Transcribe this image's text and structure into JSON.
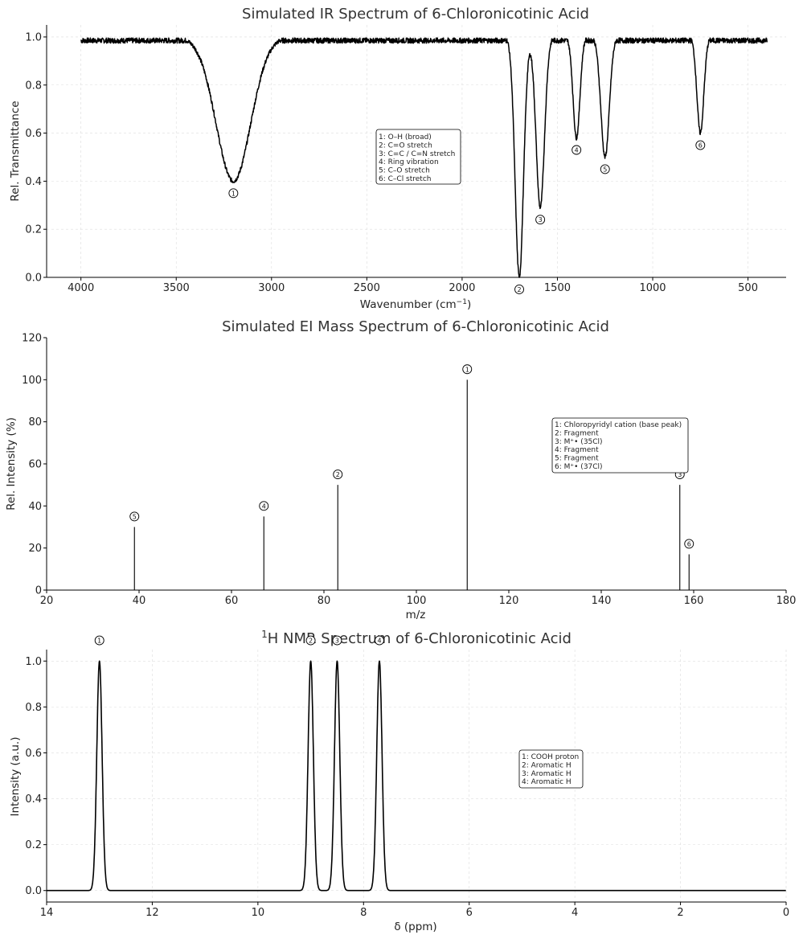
{
  "chart_data": [
    {
      "id": "ir",
      "type": "line",
      "title": "Simulated IR Spectrum of 6-Chloronicotinic Acid",
      "xlabel": "Wavenumber (cm",
      "xlabel_sup": "−1",
      "xlabel_end": ")",
      "ylabel": "Rel. Transmittance",
      "xlim": [
        4180,
        300
      ],
      "ylim": [
        0.0,
        1.05
      ],
      "xticks": [
        4000,
        3500,
        3000,
        2500,
        2000,
        1500,
        1000,
        500
      ],
      "yticks": [
        0.0,
        0.2,
        0.4,
        0.6,
        0.8,
        1.0
      ],
      "x_range": [
        4000,
        400
      ],
      "baseline": 1.0,
      "bands": [
        {
          "label": "1",
          "center": 3200,
          "min_transmittance": 0.4,
          "width": 90
        },
        {
          "label": "2",
          "center": 1700,
          "min_transmittance": 0.0,
          "width": 22
        },
        {
          "label": "3",
          "center": 1590,
          "min_transmittance": 0.29,
          "width": 22
        },
        {
          "label": "4",
          "center": 1400,
          "min_transmittance": 0.58,
          "width": 18
        },
        {
          "label": "5",
          "center": 1250,
          "min_transmittance": 0.5,
          "width": 22
        },
        {
          "label": "6",
          "center": 750,
          "min_transmittance": 0.6,
          "width": 18
        }
      ],
      "legend": [
        "1: O–H (broad)",
        "2: C=O stretch",
        "3: C=C / C=N stretch",
        "4: Ring vibration",
        "5: C–O stretch",
        "6: C–Cl stretch"
      ]
    },
    {
      "id": "ms",
      "type": "bar",
      "title": "Simulated EI Mass Spectrum of 6-Chloronicotinic Acid",
      "xlabel": "m/z",
      "ylabel": "Rel. Intensity (%)",
      "xlim": [
        20,
        180
      ],
      "ylim": [
        0,
        120
      ],
      "xticks": [
        20,
        40,
        60,
        80,
        100,
        120,
        140,
        160,
        180
      ],
      "yticks": [
        0,
        20,
        40,
        60,
        80,
        100,
        120
      ],
      "peaks": [
        {
          "label": "5",
          "mz": 39,
          "intensity": 30
        },
        {
          "label": "4",
          "mz": 67,
          "intensity": 35
        },
        {
          "label": "2",
          "mz": 83,
          "intensity": 50
        },
        {
          "label": "1",
          "mz": 111,
          "intensity": 100
        },
        {
          "label": "3",
          "mz": 157,
          "intensity": 50
        },
        {
          "label": "6",
          "mz": 159,
          "intensity": 17
        }
      ],
      "legend": [
        "1: Chloropyridyl cation (base peak)",
        "2: Fragment",
        "3: M⁺• (35Cl)",
        "4: Fragment",
        "5: Fragment",
        "6: M⁺• (37Cl)"
      ]
    },
    {
      "id": "nmr",
      "type": "line",
      "title_sup": "1",
      "title": "H NMR Spectrum of 6-Chloronicotinic Acid",
      "xlabel": "δ (ppm)",
      "ylabel": "Intensity (a.u.)",
      "xlim": [
        14,
        0
      ],
      "ylim": [
        -0.05,
        1.05
      ],
      "xticks": [
        14,
        12,
        10,
        8,
        6,
        4,
        2,
        0
      ],
      "yticks": [
        0.0,
        0.2,
        0.4,
        0.6,
        0.8,
        1.0
      ],
      "peaks": [
        {
          "label": "1",
          "shift": 13.0,
          "intensity": 1.0,
          "width": 0.05
        },
        {
          "label": "2",
          "shift": 9.0,
          "intensity": 1.0,
          "width": 0.05
        },
        {
          "label": "3",
          "shift": 8.5,
          "intensity": 1.0,
          "width": 0.05
        },
        {
          "label": "4",
          "shift": 7.7,
          "intensity": 1.0,
          "width": 0.05
        }
      ],
      "legend": [
        "1: COOH proton",
        "2: Aromatic H",
        "3: Aromatic H",
        "4: Aromatic H"
      ]
    }
  ]
}
